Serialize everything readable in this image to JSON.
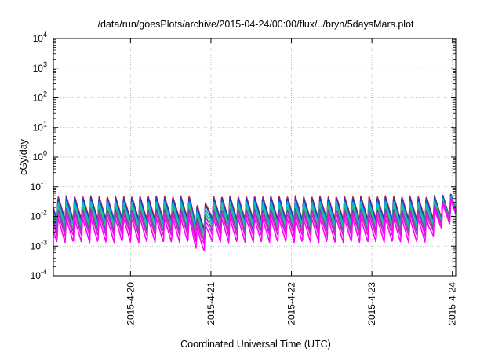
{
  "chart_data": {
    "type": "line",
    "title": "/data/run/goesPlots/archive/2015-04-24/00:00/flux/../bryn/5daysMars.plot",
    "xlabel": "Coordinated Universal Time (UTC)",
    "ylabel": "cGy/day",
    "y_scale": "log",
    "ylim": [
      0.0001,
      10000
    ],
    "y_ticks": [
      {
        "value": 0.0001,
        "base": "10",
        "exp": "-4"
      },
      {
        "value": 0.001,
        "base": "10",
        "exp": "-3"
      },
      {
        "value": 0.01,
        "base": "10",
        "exp": "-2"
      },
      {
        "value": 0.1,
        "base": "10",
        "exp": "-1"
      },
      {
        "value": 1,
        "base": "10",
        "exp": "0"
      },
      {
        "value": 10,
        "base": "10",
        "exp": "1"
      },
      {
        "value": 100,
        "base": "10",
        "exp": "2"
      },
      {
        "value": 1000,
        "base": "10",
        "exp": "3"
      },
      {
        "value": 10000,
        "base": "10",
        "exp": "4"
      }
    ],
    "xlim": [
      "2015-04-19T01:00",
      "2015-04-24T01:00"
    ],
    "x_ticks": [
      {
        "value": "2015-04-20T00:00",
        "label": "2015-4-20"
      },
      {
        "value": "2015-04-21T00:00",
        "label": "2015-4-21"
      },
      {
        "value": "2015-04-22T00:00",
        "label": "2015-4-22"
      },
      {
        "value": "2015-04-23T00:00",
        "label": "2015-4-23"
      },
      {
        "value": "2015-04-24T00:00",
        "label": "2015-4-24"
      }
    ],
    "grid": true,
    "legend": "none",
    "series": [
      {
        "color": "#e41a1c",
        "peak": 0.05,
        "trough": 0.0075
      },
      {
        "color": "#1f3fbf",
        "peak": 0.045,
        "trough": 0.0065
      },
      {
        "color": "#00b7d8",
        "peak": 0.032,
        "trough": 0.0052
      },
      {
        "color": "#23c46e",
        "peak": 0.024,
        "trough": 0.004
      },
      {
        "color": "#7a3fbf",
        "peak": 0.018,
        "trough": 0.003
      },
      {
        "color": "#d91ec8",
        "peak": 0.013,
        "trough": 0.0022
      },
      {
        "color": "#ff00ff",
        "peak": 0.009,
        "trough": 0.0013
      }
    ],
    "pattern": {
      "repeat_hours": 2.44,
      "description_values": "sawtooth: sharp rise to peak, decay to trough",
      "dip": {
        "start": "2015-04-20T18:00",
        "end": "2015-04-21T00:00",
        "factor": 0.45
      }
    },
    "end_values": [
      {
        "x": "2015-04-24T01:00",
        "y": 0.07
      }
    ]
  }
}
